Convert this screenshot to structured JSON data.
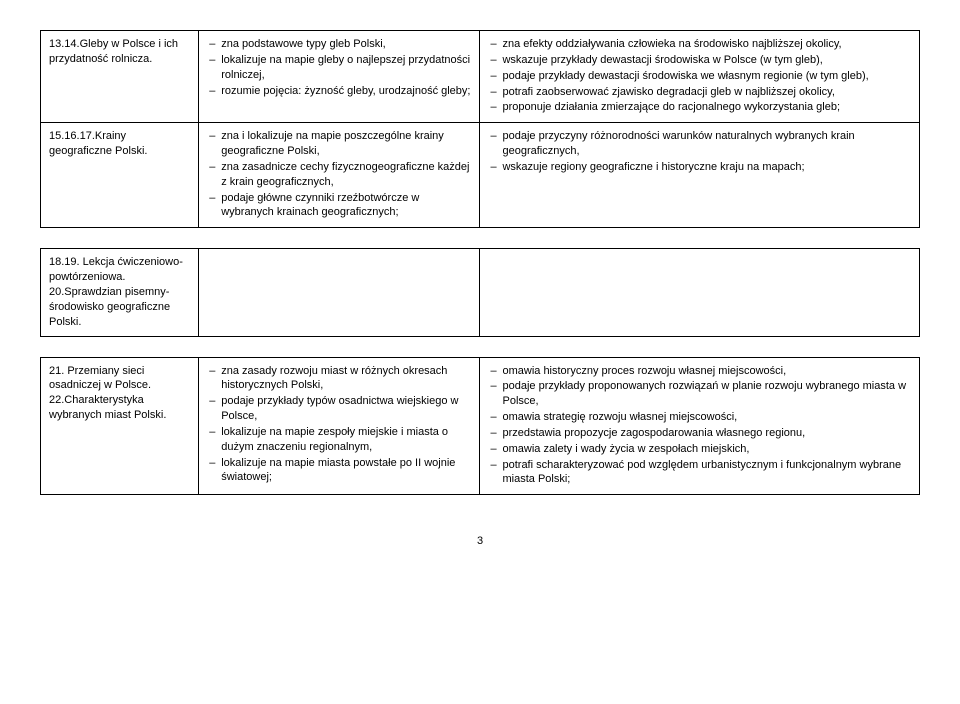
{
  "table1": {
    "row1": {
      "c1": "13.14.Gleby w Polsce i ich przydatność rolnicza.",
      "c2": [
        "zna podstawowe typy gleb Polski,",
        "lokalizuje na mapie gleby o najlepszej przydatności rolniczej,",
        "rozumie pojęcia: żyzność gleby, urodzajność gleby;"
      ],
      "c3": [
        "zna efekty oddziaływania człowieka na środowisko najbliższej okolicy,",
        "wskazuje przykłady dewastacji środowiska w Polsce (w tym gleb),",
        "podaje przykłady dewastacji środowiska we własnym regionie (w tym gleb),",
        "potrafi zaobserwować zjawisko degradacji gleb w najbliższej okolicy,",
        "proponuje działania zmierzające do racjonalnego wykorzystania gleb;"
      ]
    },
    "row2": {
      "c1": "15.16.17.Krainy geograficzne Polski.",
      "c2": [
        "zna i lokalizuje na mapie poszczególne krainy geograficzne Polski,",
        "zna zasadnicze cechy fizycznogeograficzne każdej z krain geograficznych,",
        "podaje główne czynniki rzeźbotwórcze w wybranych krainach geograficznych;"
      ],
      "c3": [
        "podaje przyczyny różnorodności warunków naturalnych wybranych krain geograficznych,",
        "wskazuje regiony geograficzne i historyczne kraju na mapach;"
      ]
    }
  },
  "table2": {
    "row1": {
      "c1": "18.19. Lekcja ćwiczeniowo-powtórzeniowa.\n20.Sprawdzian pisemny-środowisko geograficzne Polski."
    }
  },
  "table3": {
    "row1": {
      "c1": "21. Przemiany sieci osadniczej w Polsce.\n22.Charakterystyka wybranych miast Polski.",
      "c2": [
        "zna zasady rozwoju miast w różnych okresach historycznych Polski,",
        "podaje przykłady typów osadnictwa wiejskiego w Polsce,",
        "lokalizuje na mapie zespoły miejskie i miasta o dużym znaczeniu regionalnym,",
        "lokalizuje na mapie miasta powstałe po II wojnie światowej;"
      ],
      "c3": [
        "omawia historyczny proces rozwoju własnej miejscowości,",
        "podaje przykłady proponowanych rozwiązań w planie rozwoju wybranego miasta w Polsce,",
        "omawia strategię rozwoju własnej miejscowości,",
        "przedstawia propozycje zagospodarowania własnego regionu,",
        "omawia zalety i wady życia w zespołach miejskich,",
        "potrafi scharakteryzować pod względem urbanistycznym i funkcjonalnym wybrane miasta Polski;"
      ]
    }
  },
  "pageNumber": "3"
}
